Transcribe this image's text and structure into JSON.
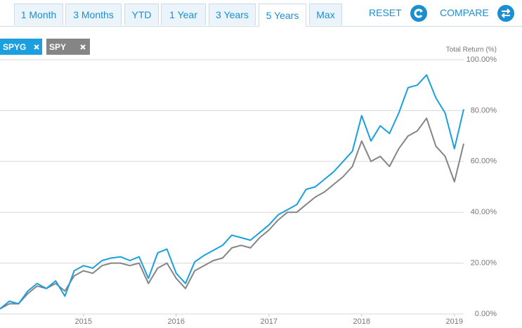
{
  "tabs": [
    "1 Month",
    "3 Months",
    "YTD",
    "1 Year",
    "3 Years",
    "5 Years",
    "Max"
  ],
  "active_tab": 5,
  "actions": [
    "RESET",
    "COMPARE"
  ],
  "chips": [
    "SPYG",
    "SPY"
  ],
  "chart_data": {
    "type": "line",
    "y_axis_label": "Total Return (%)",
    "x": [
      2014.1,
      2014.2,
      2014.3,
      2014.4,
      2014.5,
      2014.6,
      2014.7,
      2014.8,
      2014.9,
      2015.0,
      2015.1,
      2015.2,
      2015.3,
      2015.4,
      2015.5,
      2015.6,
      2015.7,
      2015.8,
      2015.9,
      2016.0,
      2016.1,
      2016.2,
      2016.3,
      2016.4,
      2016.5,
      2016.6,
      2016.7,
      2016.8,
      2016.9,
      2017.0,
      2017.1,
      2017.2,
      2017.3,
      2017.4,
      2017.5,
      2017.6,
      2017.7,
      2017.8,
      2017.9,
      2018.0,
      2018.1,
      2018.2,
      2018.3,
      2018.4,
      2018.5,
      2018.6,
      2018.7,
      2018.8,
      2018.9,
      2019.0,
      2019.1
    ],
    "series": [
      {
        "name": "SPYG",
        "color": "#1b9fdf",
        "values": [
          2,
          5,
          4,
          9,
          12,
          10,
          13,
          7,
          17,
          19,
          18,
          21,
          22,
          22.5,
          21,
          22.5,
          14,
          24,
          25.5,
          16,
          12,
          20.5,
          23,
          25,
          27,
          31,
          30,
          29,
          32,
          35,
          39,
          41,
          43,
          49,
          50,
          53,
          56,
          60,
          64,
          78,
          68,
          74,
          71,
          79,
          89,
          90,
          94,
          85,
          79,
          65,
          80.5
        ]
      },
      {
        "name": "SPY",
        "color": "#858585",
        "values": [
          2,
          4,
          4,
          8,
          11,
          10,
          12,
          9,
          15,
          17,
          16,
          19,
          20,
          20,
          19,
          20,
          12,
          18,
          20,
          14,
          10,
          17,
          19,
          21,
          22,
          26,
          27,
          26,
          30,
          33,
          37,
          40,
          40,
          43,
          46,
          48,
          51,
          54,
          58,
          68,
          60,
          62,
          58,
          65,
          70,
          72,
          77,
          66,
          62,
          52,
          67
        ]
      }
    ],
    "xlim": [
      2014.1,
      2019.1
    ],
    "xticks": [
      2015,
      2016,
      2017,
      2018,
      2019
    ],
    "ylim": [
      0,
      100
    ],
    "yticks": [
      {
        "value": 0,
        "label": "0.00%"
      },
      {
        "value": 20,
        "label": "20.00%"
      },
      {
        "value": 40,
        "label": "40.00%"
      },
      {
        "value": 60,
        "label": "60.00%"
      },
      {
        "value": 80,
        "label": "80.00%"
      },
      {
        "value": 100,
        "label": "100.00%"
      }
    ],
    "grid": true
  }
}
